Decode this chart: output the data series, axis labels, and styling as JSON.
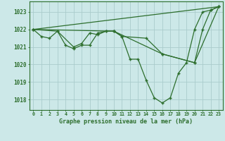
{
  "bg_color": "#cce8e8",
  "grid_color": "#aacccc",
  "line_color": "#2d6e2d",
  "title": "Graphe pression niveau de la mer (hPa)",
  "ylabel_ticks": [
    1018,
    1019,
    1020,
    1021,
    1022,
    1023
  ],
  "xlim": [
    -0.5,
    23.5
  ],
  "ylim": [
    1017.4,
    1023.6
  ],
  "series1_x": [
    0,
    1,
    2,
    3,
    4,
    5,
    6,
    7,
    8,
    9,
    10,
    11,
    12,
    13,
    14,
    15,
    16,
    17,
    18,
    19,
    20,
    21,
    22,
    23
  ],
  "series1_y": [
    1022.0,
    1021.6,
    1021.5,
    1021.9,
    1021.1,
    1020.9,
    1021.1,
    1021.1,
    1021.8,
    1021.9,
    1021.9,
    1021.6,
    1020.3,
    1020.3,
    1019.1,
    1018.1,
    1017.8,
    1018.1,
    1019.5,
    1020.1,
    1022.0,
    1023.0,
    1023.1,
    1023.3
  ],
  "series2_x": [
    0,
    3,
    5,
    6,
    7,
    8,
    9,
    10,
    11,
    14,
    16,
    20,
    21,
    22,
    23
  ],
  "series2_y": [
    1022.0,
    1021.9,
    1021.0,
    1021.2,
    1021.8,
    1021.7,
    1021.9,
    1021.9,
    1021.6,
    1021.5,
    1020.6,
    1020.1,
    1022.0,
    1023.1,
    1023.3
  ],
  "series3_x": [
    0,
    23
  ],
  "series3_y": [
    1022.0,
    1023.3
  ],
  "series4_x": [
    0,
    10,
    16,
    20,
    23
  ],
  "series4_y": [
    1022.0,
    1021.9,
    1020.6,
    1020.1,
    1023.3
  ]
}
